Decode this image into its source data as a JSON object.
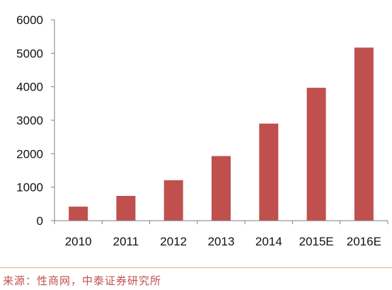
{
  "chart_data": {
    "type": "bar",
    "categories": [
      "2010",
      "2011",
      "2012",
      "2013",
      "2014",
      "2015E",
      "2016E"
    ],
    "values": [
      420,
      740,
      1210,
      1930,
      2900,
      3970,
      5170
    ],
    "title": "",
    "xlabel": "",
    "ylabel": "",
    "ylim": [
      0,
      6000
    ],
    "yticks": [
      "0",
      "1000",
      "2000",
      "3000",
      "4000",
      "5000",
      "6000"
    ],
    "grid": false,
    "legend": "none",
    "bar_color": "#c0504d"
  },
  "footer": {
    "source_text": "来源：性商网，中泰证券研究所",
    "text_color": "#c0504d",
    "rule_color": "#e6a98a"
  }
}
